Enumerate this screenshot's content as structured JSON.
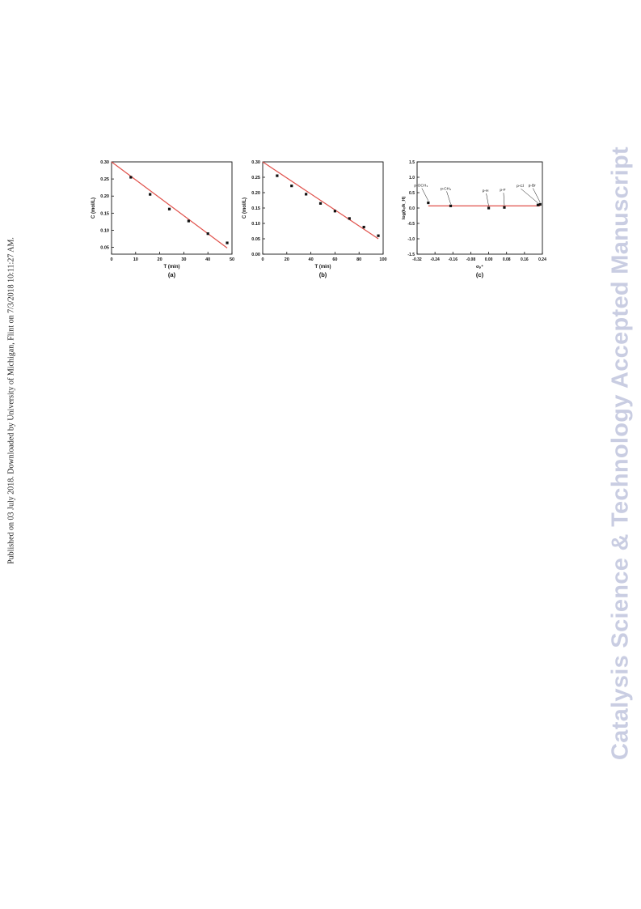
{
  "side_note": "Published on 03 July 2018. Downloaded by University of Michigan, Flint on 7/3/2018 10:11:27 AM.",
  "watermark": "Catalysis Science & Technology Accepted Manuscript",
  "colors": {
    "fit_line": "#e0504a",
    "points": "#111111",
    "axes": "#111111",
    "watermark": "#c9cde2"
  },
  "chart_data": [
    {
      "type": "scatter",
      "panel_label": "(a)",
      "xlabel": "T (min)",
      "ylabel": "C (mol/L)",
      "xlim": [
        0,
        50
      ],
      "ylim": [
        0.03,
        0.3
      ],
      "xticks": [
        "0",
        "10",
        "20",
        "30",
        "40",
        "50"
      ],
      "yticks": [
        "0.05",
        "0.10",
        "0.15",
        "0.20",
        "0.25",
        "0.30"
      ],
      "points": {
        "x": [
          8,
          16,
          24,
          32,
          40,
          48
        ],
        "y": [
          0.255,
          0.205,
          0.162,
          0.127,
          0.09,
          0.063
        ]
      },
      "fit_line": {
        "x": [
          0,
          48
        ],
        "y": [
          0.3,
          0.048
        ]
      },
      "grid": false
    },
    {
      "type": "scatter",
      "panel_label": "(b)",
      "xlabel": "T (min)",
      "ylabel": "C (mol/L)",
      "xlim": [
        0,
        100
      ],
      "ylim": [
        0.0,
        0.3
      ],
      "xticks": [
        "0",
        "20",
        "40",
        "60",
        "80",
        "100"
      ],
      "yticks": [
        "0.00",
        "0.05",
        "0.10",
        "0.15",
        "0.20",
        "0.25",
        "0.30"
      ],
      "points": {
        "x": [
          12,
          24,
          36,
          48,
          60,
          72,
          84,
          96
        ],
        "y": [
          0.255,
          0.222,
          0.195,
          0.165,
          0.14,
          0.116,
          0.088,
          0.06
        ]
      },
      "fit_line": {
        "x": [
          0,
          96
        ],
        "y": [
          0.3,
          0.05
        ]
      },
      "grid": false
    },
    {
      "type": "scatter",
      "panel_label": "(c)",
      "xlabel": "σₚ⁺",
      "ylabel": "log(kₓ/k_H)",
      "xlim": [
        -0.32,
        0.24
      ],
      "ylim": [
        -1.5,
        1.5
      ],
      "xticks": [
        "-0.32",
        "-0.24",
        "-0.16",
        "-0.08",
        "0.00",
        "0.08",
        "0.16",
        "0.24"
      ],
      "yticks": [
        "-1.5",
        "-1.0",
        "-0.5",
        "0.0",
        "0.5",
        "1.0",
        "1.5"
      ],
      "points": {
        "x": [
          -0.27,
          -0.17,
          0.0,
          0.07,
          0.22,
          0.23
        ],
        "y": [
          0.17,
          0.07,
          0.0,
          0.02,
          0.1,
          0.12
        ],
        "labels": [
          "p-OCH₃",
          "p-CH₃",
          "p-H",
          "p-F",
          "p-Cl",
          "p-Br"
        ]
      },
      "fit_line": {
        "x": [
          -0.27,
          0.23
        ],
        "y": [
          0.07,
          0.07
        ]
      },
      "grid": false
    }
  ]
}
